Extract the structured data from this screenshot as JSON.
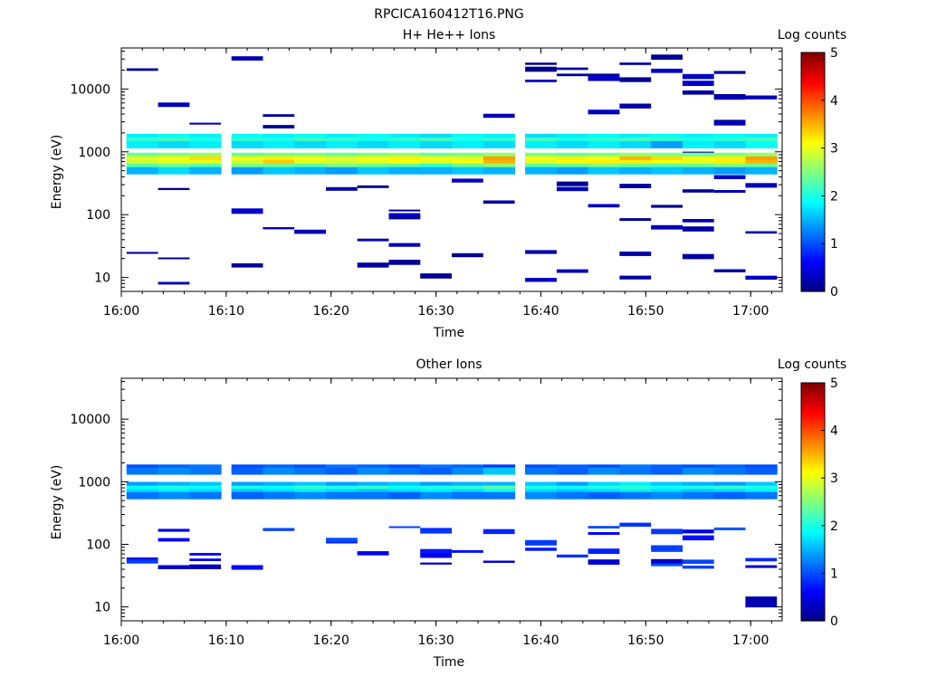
{
  "figure_title": "RPCICA160412T16.PNG",
  "chart_data": [
    {
      "type": "heatmap",
      "title": "H+ He++ Ions",
      "xlabel": "Time",
      "ylabel": "Energy (eV)",
      "x_ticks": [
        "16:00",
        "16:10",
        "16:20",
        "16:30",
        "16:40",
        "16:50",
        "17:00"
      ],
      "x_range": [
        "16:00",
        "17:03"
      ],
      "y_scale": "log",
      "y_ticks": [
        "10",
        "100",
        "1000",
        "10000"
      ],
      "y_range": [
        6,
        45000
      ],
      "colorbar": {
        "label": "Log counts",
        "range": [
          0,
          5
        ],
        "ticks": [
          "0",
          "1",
          "2",
          "3",
          "4",
          "5"
        ]
      },
      "time_bins": [
        "16:02",
        "16:05",
        "16:08",
        "16:12",
        "16:15",
        "16:18",
        "16:21",
        "16:24",
        "16:27",
        "16:30",
        "16:33",
        "16:36",
        "16:40",
        "16:43",
        "16:46",
        "16:49",
        "16:52",
        "16:55",
        "16:58",
        "17:01"
      ],
      "energy_bands": [
        {
          "energy": 1700,
          "values": [
            1.8,
            1.9,
            1.8,
            1.9,
            1.8,
            1.9,
            1.8,
            1.9,
            1.8,
            1.7,
            1.9,
            1.8,
            1.7,
            1.8,
            1.9,
            1.8,
            1.9,
            1.8,
            1.9,
            1.8
          ]
        },
        {
          "energy": 1480,
          "values": [
            2.1,
            2.2,
            2.0,
            2.1,
            2.0,
            2.2,
            2.1,
            2.0,
            2.1,
            2.2,
            2.0,
            2.1,
            2.2,
            2.0,
            2.1,
            2.2,
            2.1,
            2.0,
            2.1,
            2.2
          ]
        },
        {
          "energy": 1300,
          "values": [
            1.8,
            1.7,
            1.8,
            1.7,
            1.8,
            1.7,
            1.8,
            1.7,
            1.8,
            1.7,
            1.8,
            1.7,
            1.8,
            1.7,
            1.8,
            1.7,
            1.4,
            1.8,
            1.7,
            1.9
          ]
        },
        {
          "energy": 850,
          "values": [
            2.4,
            2.5,
            2.6,
            2.4,
            2.5,
            2.5,
            2.4,
            2.5,
            2.6,
            2.4,
            2.5,
            2.6,
            2.5,
            2.4,
            2.5,
            2.6,
            2.5,
            2.4,
            2.5,
            2.6
          ]
        },
        {
          "energy": 740,
          "values": [
            3.0,
            3.1,
            3.3,
            3.1,
            3.2,
            3.1,
            3.0,
            3.1,
            3.2,
            3.1,
            3.0,
            3.6,
            3.1,
            3.2,
            3.1,
            3.5,
            3.3,
            3.1,
            3.2,
            3.6
          ]
        },
        {
          "energy": 650,
          "values": [
            2.9,
            3.0,
            3.0,
            2.9,
            3.4,
            3.0,
            2.9,
            3.0,
            3.1,
            3.0,
            3.1,
            3.5,
            3.0,
            3.1,
            3.2,
            3.2,
            3.1,
            3.0,
            3.2,
            3.5
          ]
        },
        {
          "energy": 570,
          "values": [
            2.3,
            2.4,
            2.3,
            2.5,
            2.4,
            2.3,
            2.5,
            2.4,
            2.3,
            2.1,
            2.4,
            2.6,
            2.3,
            2.4,
            2.5,
            2.4,
            2.3,
            2.4,
            2.5,
            2.4
          ]
        },
        {
          "energy": 500,
          "values": [
            1.5,
            1.7,
            1.5,
            1.4,
            1.6,
            1.5,
            1.4,
            1.6,
            1.5,
            1.5,
            1.6,
            1.5,
            1.5,
            1.4,
            1.6,
            1.5,
            1.6,
            1.5,
            1.4,
            1.5
          ]
        }
      ],
      "sparse_counts_note": "Scattered isolated bins at ~0.2–0.6 log counts are present from 10 eV to 40000 eV across the full interval."
    },
    {
      "type": "heatmap",
      "title": "Other Ions",
      "xlabel": "Time",
      "ylabel": "Energy (eV)",
      "x_ticks": [
        "16:00",
        "16:10",
        "16:20",
        "16:30",
        "16:40",
        "16:50",
        "17:00"
      ],
      "x_range": [
        "16:00",
        "17:03"
      ],
      "y_scale": "log",
      "y_ticks": [
        "10",
        "100",
        "1000",
        "10000"
      ],
      "y_range": [
        6,
        45000
      ],
      "colorbar": {
        "label": "Log counts",
        "range": [
          0,
          5
        ],
        "ticks": [
          "0",
          "1",
          "2",
          "3",
          "4",
          "5"
        ]
      },
      "time_bins": [
        "16:02",
        "16:05",
        "16:08",
        "16:12",
        "16:15",
        "16:18",
        "16:21",
        "16:24",
        "16:27",
        "16:30",
        "16:33",
        "16:36",
        "16:40",
        "16:43",
        "16:46",
        "16:49",
        "16:52",
        "16:55",
        "16:58",
        "17:01"
      ],
      "energy_bands": [
        {
          "energy": 1650,
          "values": [
            1.0,
            1.1,
            1.2,
            1.0,
            1.1,
            1.0,
            1.2,
            1.1,
            1.0,
            1.2,
            1.1,
            0.9,
            1.0,
            1.1,
            1.0,
            1.2,
            1.1,
            1.0,
            1.1,
            1.0
          ]
        },
        {
          "energy": 1480,
          "values": [
            1.2,
            1.3,
            1.2,
            1.1,
            1.3,
            1.2,
            1.1,
            1.3,
            1.2,
            1.1,
            1.3,
            1.6,
            1.2,
            1.1,
            1.3,
            1.2,
            1.1,
            1.3,
            1.2,
            1.1
          ]
        },
        {
          "energy": 870,
          "values": [
            1.4,
            1.5,
            1.6,
            1.4,
            1.5,
            1.6,
            1.4,
            1.5,
            1.6,
            1.4,
            1.5,
            1.5,
            1.6,
            1.4,
            1.7,
            1.8,
            1.6,
            1.5,
            1.4,
            1.6
          ]
        },
        {
          "energy": 760,
          "values": [
            1.9,
            2.0,
            1.9,
            2.0,
            1.9,
            2.1,
            2.0,
            2.1,
            1.9,
            2.0,
            2.1,
            2.3,
            2.0,
            1.9,
            2.0,
            2.1,
            1.9,
            2.0,
            2.1,
            2.0
          ]
        },
        {
          "energy": 670,
          "values": [
            1.7,
            1.8,
            1.7,
            1.6,
            1.7,
            1.8,
            1.7,
            1.6,
            1.7,
            1.8,
            1.7,
            1.9,
            1.7,
            1.6,
            1.7,
            1.8,
            1.7,
            1.6,
            1.7,
            1.8
          ]
        },
        {
          "energy": 600,
          "values": [
            1.2,
            1.3,
            1.2,
            1.1,
            1.2,
            1.3,
            1.2,
            1.2,
            1.1,
            1.3,
            1.2,
            1.2,
            1.3,
            1.2,
            1.1,
            1.2,
            1.3,
            1.2,
            1.1,
            1.2
          ]
        }
      ],
      "sparse_counts_note": "Low-energy population between ~40 and ~200 eV at ~0.3–1.0 log counts, strongest 16:02–16:25; isolated bins near 12 eV at 17:01."
    }
  ]
}
